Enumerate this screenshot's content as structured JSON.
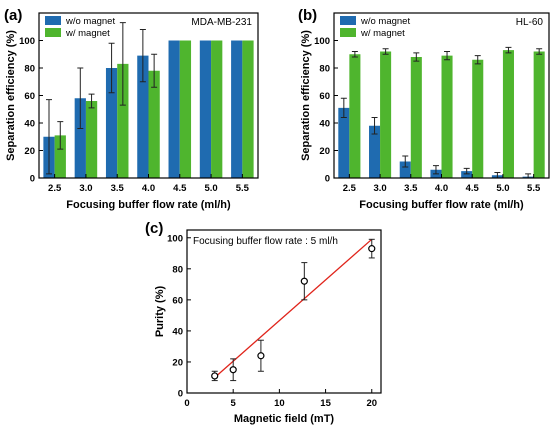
{
  "colors": {
    "wo": "#1f6bb0",
    "w": "#4fb52e",
    "fit": "#e0241b"
  },
  "chart_data": [
    {
      "panel": "(a)",
      "type": "bar",
      "annotation": "MDA-MB-231",
      "categories": [
        "2.5",
        "3.0",
        "3.5",
        "4.0",
        "4.5",
        "5.0",
        "5.5"
      ],
      "series": [
        {
          "name": "w/o magnet",
          "values": [
            30,
            58,
            80,
            89,
            100,
            100,
            100
          ],
          "errors": [
            27,
            22,
            18,
            19,
            0,
            0,
            0
          ]
        },
        {
          "name": "w/ magnet",
          "values": [
            31,
            56,
            83,
            78,
            100,
            100,
            100
          ],
          "errors": [
            10,
            5,
            30,
            12,
            0,
            0,
            0
          ]
        }
      ],
      "xlabel": "Focusing buffer flow rate (ml/h)",
      "ylabel": "Separation efficiency (%)",
      "ylim": [
        0,
        120
      ],
      "yticks": [
        0,
        20,
        40,
        60,
        80,
        100
      ],
      "legend": "top-left"
    },
    {
      "panel": "(b)",
      "type": "bar",
      "annotation": "HL-60",
      "categories": [
        "2.5",
        "3.0",
        "3.5",
        "4.0",
        "4.5",
        "5.0",
        "5.5"
      ],
      "series": [
        {
          "name": "w/o magnet",
          "values": [
            51,
            38,
            12,
            6,
            5,
            2,
            1
          ],
          "errors": [
            7,
            6,
            4,
            3,
            2,
            2,
            2
          ]
        },
        {
          "name": "w/ magnet",
          "values": [
            90,
            92,
            88,
            89,
            86,
            93,
            92
          ],
          "errors": [
            2,
            2,
            3,
            3,
            3,
            2,
            2
          ]
        }
      ],
      "xlabel": "Focusing buffer flow rate (ml/h)",
      "ylabel": "Separation efficiency (%)",
      "ylim": [
        0,
        120
      ],
      "yticks": [
        0,
        20,
        40,
        60,
        80,
        100
      ],
      "legend": "top-left"
    },
    {
      "panel": "(c)",
      "type": "scatter",
      "annotation": "Focusing buffer flow rate : 5 ml/h",
      "x": [
        3,
        5,
        8,
        12.7,
        20
      ],
      "y": [
        11,
        15,
        24,
        72,
        93
      ],
      "errors": [
        3,
        7,
        10,
        12,
        6
      ],
      "fit_line": {
        "x": [
          3,
          20
        ],
        "y": [
          10,
          99
        ]
      },
      "xlabel": "Magnetic field (mT)",
      "ylabel": "Purity (%)",
      "xlim": [
        0,
        21
      ],
      "ylim": [
        0,
        105
      ],
      "xticks": [
        0,
        5,
        10,
        15,
        20
      ],
      "yticks": [
        0,
        20,
        40,
        60,
        80,
        100
      ]
    }
  ]
}
